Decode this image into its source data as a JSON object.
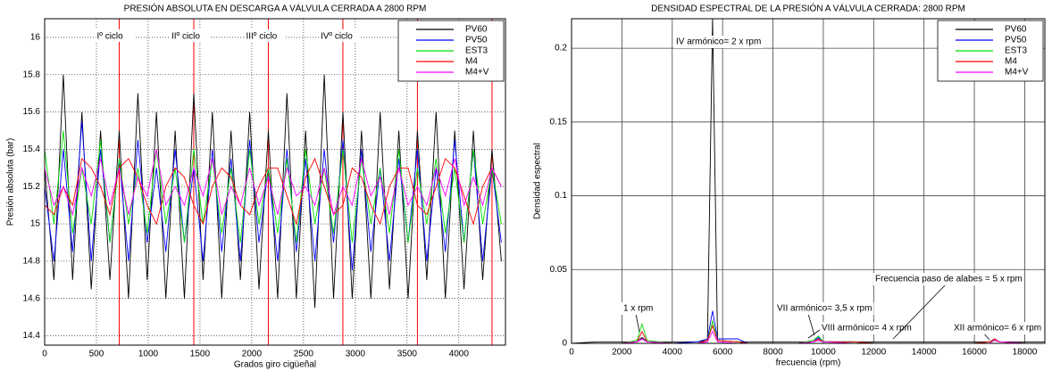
{
  "chart_data": [
    {
      "type": "line",
      "title": "PRESIÓN ABSOLUTA EN DESCARGA A VÁLVULA CERRADA A 2800 RPM",
      "xlabel": "Grados giro cigüeñal",
      "ylabel": "Presión absoluta (bar)",
      "xlim": [
        0,
        4450
      ],
      "xticks": [
        0,
        500,
        1000,
        1500,
        2000,
        2500,
        3000,
        3500,
        4000
      ],
      "ylim": [
        14.35,
        16.1
      ],
      "yticks": [
        14.4,
        14.6,
        14.8,
        15,
        15.2,
        15.4,
        15.6,
        15.8,
        16
      ],
      "grid": "dotted",
      "legend": "upper-right",
      "vlines": [
        720,
        1440,
        2160,
        2880,
        3600,
        4320
      ],
      "vline_color": "#ff0000",
      "annotations": [
        "Iº ciclo",
        "IIº ciclo",
        "IIIº ciclo",
        "IVº ciclo"
      ],
      "x": [
        0,
        90,
        180,
        270,
        360,
        450,
        540,
        630,
        720,
        810,
        900,
        990,
        1080,
        1170,
        1260,
        1350,
        1440,
        1530,
        1620,
        1710,
        1800,
        1890,
        1980,
        2070,
        2160,
        2250,
        2340,
        2430,
        2520,
        2610,
        2700,
        2790,
        2880,
        2970,
        3060,
        3150,
        3240,
        3330,
        3420,
        3510,
        3600,
        3690,
        3780,
        3870,
        3960,
        4050,
        4140,
        4230,
        4320,
        4410
      ],
      "series": [
        {
          "name": "PV60",
          "color": "#000000",
          "values": [
            15.3,
            14.7,
            15.8,
            14.7,
            15.6,
            14.65,
            15.5,
            14.7,
            15.5,
            14.6,
            15.7,
            14.7,
            15.6,
            14.6,
            15.5,
            14.6,
            15.7,
            14.7,
            15.6,
            14.6,
            15.5,
            14.7,
            15.6,
            14.65,
            15.5,
            14.6,
            15.7,
            14.6,
            15.5,
            14.55,
            15.8,
            14.6,
            15.6,
            14.6,
            15.5,
            14.6,
            15.6,
            14.65,
            15.5,
            14.6,
            15.5,
            14.7,
            15.6,
            14.6,
            15.5,
            14.65,
            15.5,
            14.7,
            15.4,
            14.8
          ]
        },
        {
          "name": "PV50",
          "color": "#0000ff",
          "values": [
            15.2,
            14.8,
            15.4,
            14.85,
            15.55,
            14.8,
            15.4,
            14.9,
            15.35,
            14.8,
            15.45,
            14.9,
            15.3,
            14.85,
            15.4,
            14.9,
            15.3,
            14.8,
            15.4,
            14.85,
            15.35,
            14.8,
            15.45,
            14.9,
            15.3,
            14.8,
            15.4,
            14.85,
            15.35,
            14.8,
            15.4,
            14.9,
            15.45,
            14.75,
            15.4,
            14.85,
            15.3,
            14.8,
            15.35,
            14.9,
            15.4,
            14.8,
            15.3,
            14.85,
            15.45,
            14.9,
            15.4,
            14.8,
            15.3,
            14.9
          ]
        },
        {
          "name": "EST3",
          "color": "#00dd00",
          "values": [
            15.4,
            15.0,
            15.5,
            14.95,
            15.3,
            15.0,
            15.45,
            14.9,
            15.35,
            15.0,
            15.3,
            14.95,
            15.4,
            15.0,
            15.3,
            14.9,
            15.4,
            15.0,
            15.35,
            14.95,
            15.3,
            14.9,
            15.4,
            15.0,
            15.3,
            14.95,
            15.35,
            14.9,
            15.4,
            15.0,
            15.3,
            14.95,
            15.4,
            14.9,
            15.35,
            15.0,
            15.3,
            14.95,
            15.4,
            14.9,
            15.3,
            15.0,
            15.35,
            14.95,
            15.3,
            14.9,
            15.4,
            15.0,
            15.3,
            15.0
          ]
        },
        {
          "name": "M4",
          "color": "#ff0000",
          "values": [
            15.1,
            15.05,
            15.2,
            15.1,
            15.35,
            15.3,
            15.2,
            15.05,
            15.3,
            15.35,
            15.25,
            15.1,
            15.0,
            15.2,
            15.3,
            15.25,
            15.1,
            15.0,
            15.2,
            15.3,
            15.25,
            15.1,
            15.05,
            15.2,
            15.3,
            15.3,
            15.15,
            15.0,
            15.25,
            15.35,
            15.2,
            15.05,
            15.1,
            15.3,
            15.25,
            15.1,
            15.0,
            15.2,
            15.3,
            15.3,
            15.1,
            15.05,
            15.2,
            15.35,
            15.3,
            15.15,
            15.0,
            15.2,
            15.3,
            15.2
          ]
        },
        {
          "name": "M4+V",
          "color": "#ff00ff",
          "values": [
            15.3,
            15.1,
            15.2,
            15.05,
            15.3,
            15.15,
            15.35,
            15.1,
            15.3,
            15.05,
            15.25,
            15.15,
            15.4,
            15.1,
            15.2,
            15.1,
            15.3,
            15.15,
            15.35,
            15.05,
            15.2,
            15.1,
            15.3,
            15.1,
            15.25,
            15.05,
            15.3,
            15.15,
            15.2,
            15.1,
            15.3,
            15.05,
            15.2,
            15.1,
            15.35,
            15.15,
            15.25,
            15.05,
            15.3,
            15.1,
            15.2,
            15.1,
            15.3,
            15.15,
            15.35,
            15.1,
            15.25,
            15.1,
            15.3,
            15.2
          ]
        }
      ]
    },
    {
      "type": "line",
      "title": "DENSIDAD ESPECTRAL DE LA PRESIÓN A VÁLVULA CERRADA: 2800 RPM",
      "xlabel": "frecuencia (rpm)",
      "ylabel": "Densidad espectral",
      "xlim": [
        0,
        18800
      ],
      "xticks": [
        0,
        2000,
        4000,
        6000,
        8000,
        10000,
        12000,
        14000,
        16000,
        18000
      ],
      "ylim": [
        0,
        0.22
      ],
      "yticks": [
        0,
        0.05,
        0.1,
        0.15,
        0.2
      ],
      "grid": "solid",
      "legend": "upper-right",
      "annotations": [
        "IV armónico= 2 x rpm",
        "1 x rpm",
        "VII armónico= 3,5 x rpm",
        "VIII armónico= 4 x rpm",
        "Frecuencia paso de alabes = 5 x rpm",
        "XII armónico= 6 x rpm"
      ],
      "x": [
        0,
        1000,
        2000,
        2600,
        2800,
        3000,
        4000,
        5000,
        5400,
        5600,
        5800,
        6600,
        7000,
        8000,
        9000,
        9600,
        9800,
        10000,
        11200,
        12000,
        13000,
        14000,
        15000,
        16000,
        16600,
        16800,
        17000,
        18000,
        18800
      ],
      "series": [
        {
          "name": "PV60",
          "color": "#000000",
          "values": [
            0,
            0.001,
            0.001,
            0.001,
            0.004,
            0.001,
            0.001,
            0.001,
            0.002,
            0.22,
            0.002,
            0.001,
            0.001,
            0.001,
            0.001,
            0.001,
            0.002,
            0.001,
            0.001,
            0.001,
            0.001,
            0.001,
            0.001,
            0.001,
            0.001,
            0.002,
            0.001,
            0.001,
            0.001
          ]
        },
        {
          "name": "PV50",
          "color": "#0000ff",
          "values": [
            0,
            0,
            0,
            0.001,
            0.003,
            0.001,
            0,
            0.001,
            0.003,
            0.022,
            0.003,
            0.003,
            0,
            0,
            0,
            0.001,
            0.004,
            0.001,
            0.001,
            0,
            0,
            0,
            0,
            0,
            0.001,
            0.003,
            0.001,
            0,
            0
          ]
        },
        {
          "name": "EST3",
          "color": "#00dd00",
          "values": [
            0,
            0,
            0,
            0.002,
            0.013,
            0.002,
            0,
            0,
            0.002,
            0.015,
            0.002,
            0.001,
            0,
            0,
            0,
            0.002,
            0.005,
            0.001,
            0.001,
            0,
            0,
            0,
            0,
            0,
            0.001,
            0.002,
            0.001,
            0,
            0
          ]
        },
        {
          "name": "M4",
          "color": "#ff0000",
          "values": [
            0,
            0,
            0,
            0.001,
            0.008,
            0.001,
            0,
            0,
            0.002,
            0.012,
            0.002,
            0.001,
            0,
            0,
            0,
            0.001,
            0.003,
            0.001,
            0.001,
            0,
            0,
            0,
            0,
            0,
            0.001,
            0.003,
            0.001,
            0,
            0
          ]
        },
        {
          "name": "M4+V",
          "color": "#ff00ff",
          "values": [
            0,
            0,
            0,
            0.001,
            0.003,
            0.001,
            0,
            0,
            0.001,
            0.008,
            0.001,
            0,
            0,
            0,
            0,
            0.001,
            0.002,
            0.001,
            0,
            0,
            0,
            0,
            0,
            0,
            0,
            0.002,
            0.001,
            0,
            0
          ]
        }
      ]
    }
  ]
}
